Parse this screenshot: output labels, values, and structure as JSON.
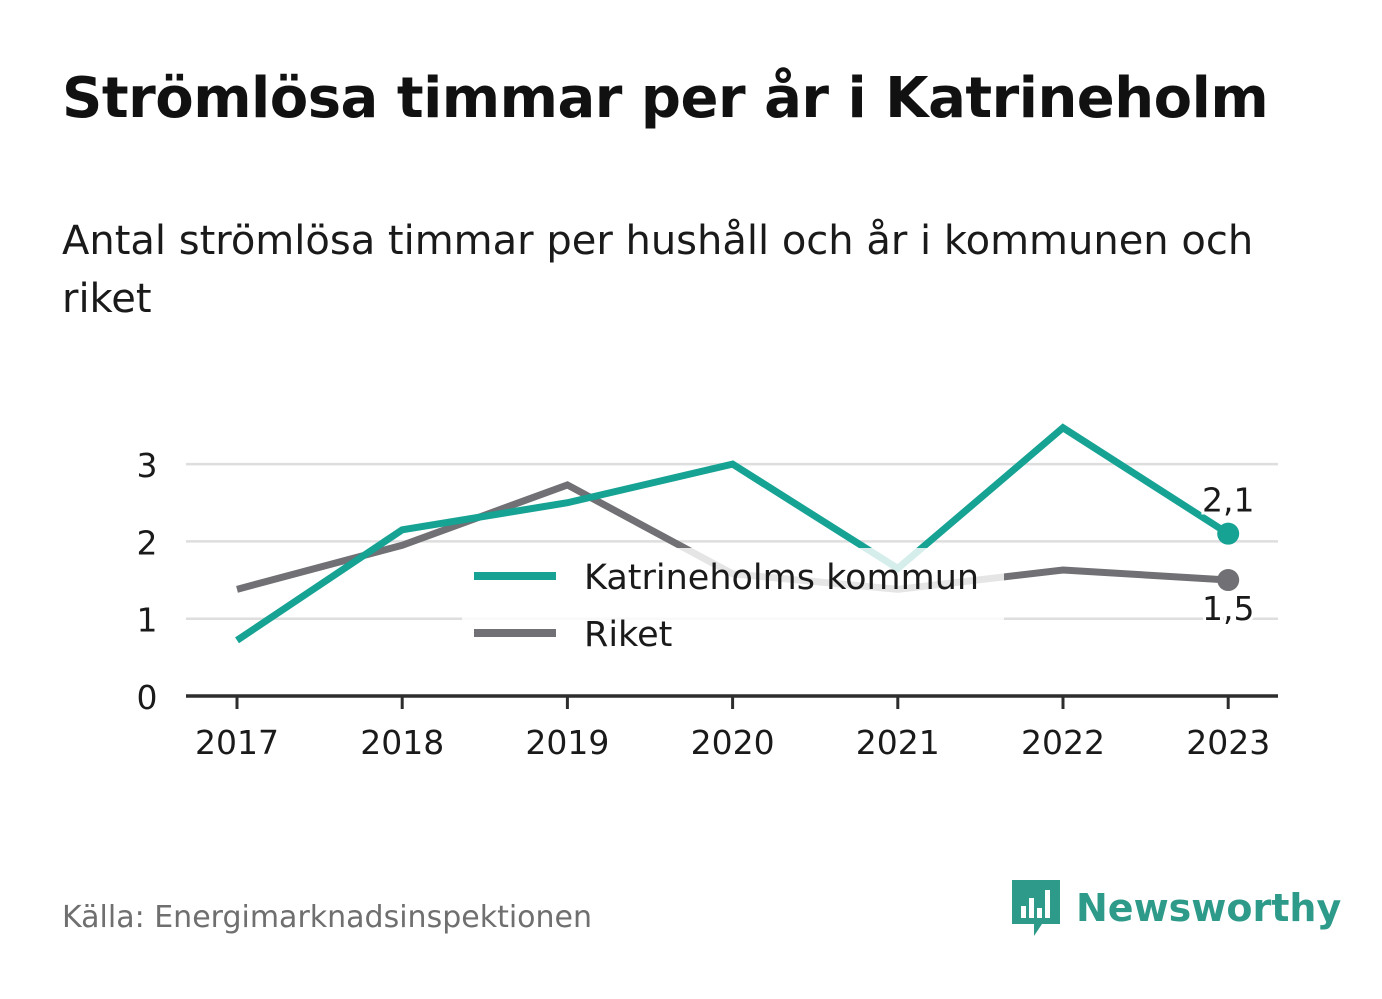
{
  "header": {
    "title": "Strömlösa timmar per år i Katrineholm",
    "subtitle": "Antal strömlösa timmar per hushåll och år i kommunen och riket"
  },
  "chart_data": {
    "type": "line",
    "x": [
      "2017",
      "2018",
      "2019",
      "2020",
      "2021",
      "2022",
      "2023"
    ],
    "ylim": [
      0,
      3.5
    ],
    "yticks": [
      0,
      1,
      2,
      3
    ],
    "grid": true,
    "legend_position": "center",
    "series": [
      {
        "name": "Katrineholms kommun",
        "color": "#16a394",
        "values": [
          0.72,
          2.15,
          2.5,
          3.0,
          1.65,
          3.47,
          2.1
        ],
        "end_label": "2,1"
      },
      {
        "name": "Riket",
        "color": "#707075",
        "values": [
          1.38,
          1.95,
          2.73,
          1.58,
          1.38,
          1.63,
          1.5
        ],
        "end_label": "1,5"
      }
    ]
  },
  "footer": {
    "source": "Källa: Energimarknadsinspektionen",
    "brand": "Newsworthy",
    "brand_icon": "newsworthy-logo-icon",
    "brand_color": "#2e9b8a"
  }
}
